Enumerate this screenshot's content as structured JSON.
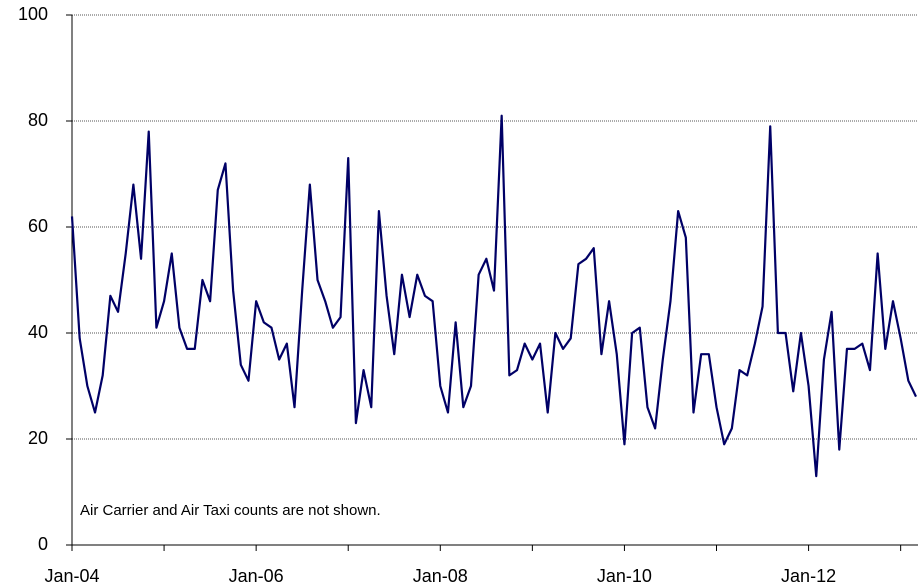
{
  "chart_data": {
    "type": "line",
    "annotation": "Air Carrier and Air Taxi counts are not shown.",
    "categories": [
      "Jan-04",
      null,
      null,
      null,
      null,
      null,
      null,
      null,
      null,
      null,
      null,
      null,
      null,
      null,
      null,
      null,
      null,
      null,
      null,
      null,
      null,
      null,
      null,
      null,
      "Jan-06",
      null,
      null,
      null,
      null,
      null,
      null,
      null,
      null,
      null,
      null,
      null,
      null,
      null,
      null,
      null,
      null,
      null,
      null,
      null,
      null,
      null,
      null,
      null,
      "Jan-08",
      null,
      null,
      null,
      null,
      null,
      null,
      null,
      null,
      null,
      null,
      null,
      null,
      null,
      null,
      null,
      null,
      null,
      null,
      null,
      null,
      null,
      null,
      null,
      "Jan-10",
      null,
      null,
      null,
      null,
      null,
      null,
      null,
      null,
      null,
      null,
      null,
      null,
      null,
      null,
      null,
      null,
      null,
      null,
      null,
      null,
      null,
      null,
      null,
      "Jan-12",
      null,
      null,
      null,
      null,
      null,
      null,
      null,
      null,
      null,
      null,
      null,
      null,
      null,
      null
    ],
    "series": [
      {
        "color": "#000066",
        "values": [
          62,
          39,
          30,
          25,
          32,
          47,
          44,
          55,
          68,
          54,
          78,
          41,
          46,
          55,
          41,
          37,
          37,
          50,
          46,
          67,
          72,
          48,
          34,
          31,
          46,
          42,
          41,
          35,
          38,
          26,
          48,
          68,
          50,
          46,
          41,
          43,
          73,
          23,
          33,
          26,
          63,
          47,
          36,
          51,
          43,
          51,
          47,
          46,
          30,
          25,
          42,
          26,
          30,
          51,
          54,
          48,
          81,
          32,
          33,
          38,
          35,
          38,
          25,
          40,
          37,
          39,
          53,
          54,
          56,
          36,
          46,
          36,
          19,
          40,
          41,
          26,
          22,
          35,
          46,
          63,
          58,
          25,
          36,
          36,
          26,
          19,
          22,
          33,
          32,
          38,
          45,
          79,
          40,
          40,
          29,
          40,
          30,
          13,
          35,
          44,
          18,
          37,
          37,
          38,
          33,
          55,
          37,
          46,
          39,
          31,
          28
        ]
      }
    ],
    "ylim": [
      0,
      100
    ],
    "yticks": [
      0,
      20,
      40,
      60,
      80,
      100
    ],
    "grid": true
  }
}
